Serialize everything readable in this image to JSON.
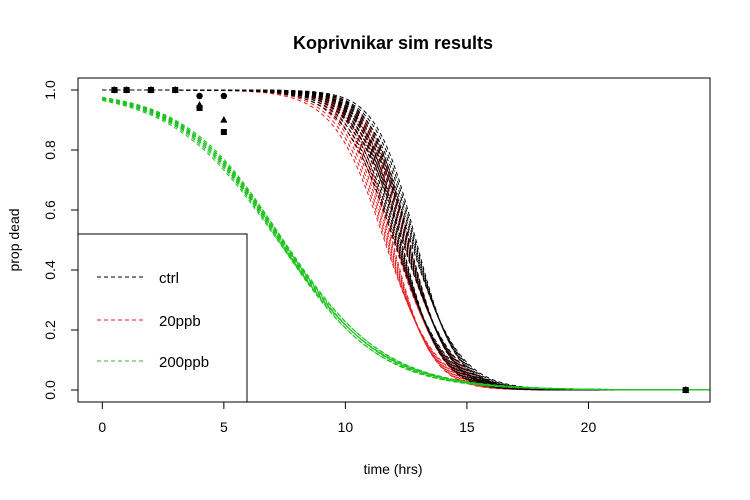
{
  "chart_data": {
    "type": "line",
    "title": "Koprivnikar sim results",
    "xlabel": "time (hrs)",
    "ylabel": "prop dead",
    "xlim": [
      -1,
      25
    ],
    "ylim": [
      -0.04,
      1.04
    ],
    "x_ticks": [
      0,
      5,
      10,
      15,
      20
    ],
    "y_ticks": [
      0.0,
      0.2,
      0.4,
      0.6,
      0.8,
      1.0
    ],
    "y_tick_labels": [
      "0.0",
      "0.2",
      "0.4",
      "0.6",
      "0.8",
      "1.0"
    ],
    "grid": false,
    "legend": {
      "position": "bottom-left",
      "entries": [
        {
          "label": "ctrl",
          "color": "#000000"
        },
        {
          "label": "20ppb",
          "color": "#e41a1c"
        },
        {
          "label": "200ppb",
          "color": "#1fc41f"
        }
      ]
    },
    "series": [
      {
        "name": "ctrl",
        "color": "#000000",
        "line_style": "dashed",
        "simulated_curve_count": 20,
        "curve_model": "1 - logistic",
        "midpoint_hrs_range": [
          12.0,
          12.9
        ],
        "slope_range": [
          0.95,
          1.25
        ],
        "observed": [
          {
            "x": 0.5,
            "y": 1.0,
            "marker": "square"
          },
          {
            "x": 1.0,
            "y": 1.0,
            "marker": "square"
          },
          {
            "x": 2.0,
            "y": 1.0,
            "marker": "square"
          },
          {
            "x": 3.0,
            "y": 1.0,
            "marker": "square"
          },
          {
            "x": 24.0,
            "y": 0.0,
            "marker": "square"
          }
        ]
      },
      {
        "name": "20ppb",
        "color": "#e41a1c",
        "line_style": "dashed",
        "simulated_curve_count": 20,
        "curve_model": "1 - logistic",
        "midpoint_hrs_range": [
          11.6,
          12.6
        ],
        "slope_range": [
          0.95,
          1.25
        ],
        "observed": [
          {
            "x": 0.5,
            "y": 1.0,
            "marker": "circle"
          },
          {
            "x": 1.0,
            "y": 1.0,
            "marker": "circle"
          },
          {
            "x": 2.0,
            "y": 1.0,
            "marker": "circle"
          },
          {
            "x": 3.0,
            "y": 1.0,
            "marker": "circle"
          },
          {
            "x": 4.0,
            "y": 0.98,
            "marker": "circle"
          },
          {
            "x": 5.0,
            "y": 0.98,
            "marker": "circle"
          },
          {
            "x": 24.0,
            "y": 0.0,
            "marker": "circle"
          }
        ]
      },
      {
        "name": "200ppb",
        "color": "#1fc41f",
        "line_style": "dashed",
        "simulated_curve_count": 12,
        "curve_model": "1 - logistic",
        "midpoint_hrs_range": [
          7.2,
          7.45
        ],
        "slope_range": [
          0.46,
          0.5
        ],
        "observed": [
          {
            "x": 0.5,
            "y": 1.0,
            "marker": "triangle"
          },
          {
            "x": 1.0,
            "y": 1.0,
            "marker": "triangle"
          },
          {
            "x": 2.0,
            "y": 1.0,
            "marker": "triangle"
          },
          {
            "x": 3.0,
            "y": 1.0,
            "marker": "triangle"
          },
          {
            "x": 4.0,
            "y": 0.95,
            "marker": "triangle"
          },
          {
            "x": 5.0,
            "y": 0.9,
            "marker": "triangle"
          },
          {
            "x": 4.0,
            "y": 0.94,
            "marker": "square"
          },
          {
            "x": 5.0,
            "y": 0.86,
            "marker": "square"
          },
          {
            "x": 24.0,
            "y": 0.0,
            "marker": "triangle"
          }
        ]
      }
    ]
  }
}
